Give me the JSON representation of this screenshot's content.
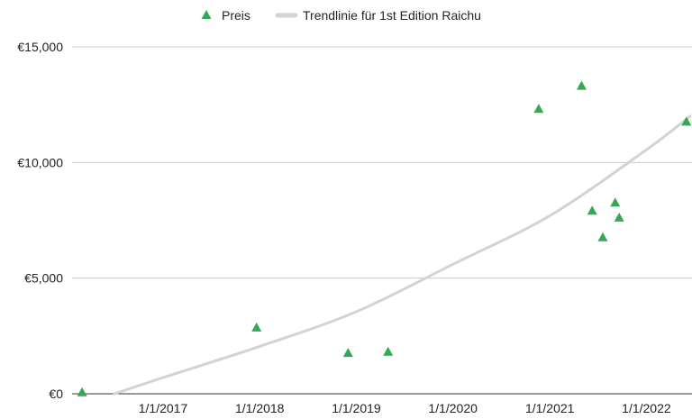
{
  "chart_data": {
    "type": "scatter",
    "legend": {
      "position": "top",
      "entries": [
        {
          "label": "Preis",
          "marker": "triangle",
          "color": "#34a853"
        },
        {
          "label": "Trendlinie für 1st Edition Raichu",
          "marker": "line",
          "color": "#d3d3d3"
        }
      ]
    },
    "x_axis": {
      "type": "date",
      "ticks": [
        "2017-01-01",
        "2018-01-01",
        "2019-01-01",
        "2020-01-01",
        "2021-01-01",
        "2022-01-01"
      ],
      "tick_labels": [
        "1/1/2017",
        "1/1/2018",
        "1/1/2019",
        "1/1/2020",
        "1/1/2021",
        "1/1/2022"
      ]
    },
    "y_axis": {
      "ticks": [
        0,
        5000,
        10000,
        15000
      ],
      "tick_labels": [
        "€0",
        "€5,000",
        "€10,000",
        "€15,000"
      ],
      "grid": true
    },
    "series": [
      {
        "name": "Preis",
        "color": "#34a853",
        "points": [
          {
            "x": "2016-03-01",
            "y": 50
          },
          {
            "x": "2017-12-20",
            "y": 2850
          },
          {
            "x": "2018-12-01",
            "y": 1750
          },
          {
            "x": "2019-05-01",
            "y": 1800
          },
          {
            "x": "2020-11-20",
            "y": 12300
          },
          {
            "x": "2021-05-01",
            "y": 13300
          },
          {
            "x": "2021-06-10",
            "y": 7900
          },
          {
            "x": "2021-07-20",
            "y": 6750
          },
          {
            "x": "2021-09-05",
            "y": 8250
          },
          {
            "x": "2021-09-20",
            "y": 7600
          },
          {
            "x": "2022-06-01",
            "y": 11750
          }
        ]
      }
    ],
    "trendline": {
      "name": "Trendlinie für 1st Edition Raichu",
      "type": "polynomial",
      "color": "#d3d3d3",
      "points": [
        {
          "x": "2016-07-01",
          "y": 0
        },
        {
          "x": "2017-01-01",
          "y": 700
        },
        {
          "x": "2018-01-01",
          "y": 2050
        },
        {
          "x": "2019-01-01",
          "y": 3550
        },
        {
          "x": "2020-01-01",
          "y": 5600
        },
        {
          "x": "2021-01-01",
          "y": 7700
        },
        {
          "x": "2022-01-01",
          "y": 10550
        },
        {
          "x": "2022-06-15",
          "y": 12000
        }
      ]
    }
  }
}
